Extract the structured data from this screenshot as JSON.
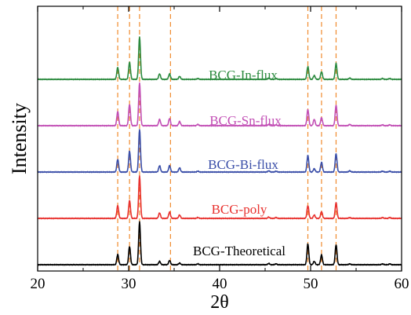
{
  "chart_data": {
    "type": "line",
    "title": "",
    "xlabel": "2θ",
    "ylabel": "Intensity",
    "xlim": [
      20,
      60
    ],
    "x_ticks": [
      20,
      30,
      40,
      50,
      60
    ],
    "y_ticks_shown": false,
    "grid": false,
    "legend": "none (series labeled inline above each trace)",
    "reference_lines": {
      "style": "dashed",
      "color": "#f08a2c",
      "x": [
        28.8,
        30.1,
        31.2,
        34.6,
        49.7,
        51.2,
        52.8
      ]
    },
    "series": [
      {
        "name": "BCG-Theoretical",
        "color": "#000000",
        "baseline": 0,
        "peaks": [
          [
            28.8,
            24
          ],
          [
            30.1,
            43
          ],
          [
            31.2,
            100
          ],
          [
            33.4,
            8
          ],
          [
            34.5,
            10
          ],
          [
            35.6,
            4
          ],
          [
            37.6,
            2
          ],
          [
            45.4,
            3
          ],
          [
            46.2,
            2
          ],
          [
            49.7,
            49
          ],
          [
            50.4,
            8
          ],
          [
            51.2,
            23
          ],
          [
            52.8,
            47
          ],
          [
            54.3,
            2
          ],
          [
            57.9,
            2
          ],
          [
            58.7,
            2
          ]
        ]
      },
      {
        "name": "BCG-poly",
        "color": "#e8312e",
        "baseline": 1.0,
        "peaks": [
          [
            28.8,
            30
          ],
          [
            30.1,
            42
          ],
          [
            31.2,
            100
          ],
          [
            33.4,
            13
          ],
          [
            34.5,
            15
          ],
          [
            35.6,
            8
          ],
          [
            37.6,
            2
          ],
          [
            45.4,
            3
          ],
          [
            46.2,
            2
          ],
          [
            49.7,
            30
          ],
          [
            50.4,
            8
          ],
          [
            51.2,
            16
          ],
          [
            52.8,
            37
          ],
          [
            54.3,
            2
          ],
          [
            57.9,
            2
          ],
          [
            58.7,
            2
          ]
        ]
      },
      {
        "name": "BCG-Bi-flux",
        "color": "#3a4ea8",
        "baseline": 2.0,
        "peaks": [
          [
            28.8,
            30
          ],
          [
            30.1,
            49
          ],
          [
            31.2,
            100
          ],
          [
            33.4,
            15
          ],
          [
            34.5,
            15
          ],
          [
            35.6,
            10
          ],
          [
            37.6,
            2
          ],
          [
            45.4,
            3
          ],
          [
            46.2,
            2
          ],
          [
            49.7,
            39
          ],
          [
            50.4,
            8
          ],
          [
            51.2,
            23
          ],
          [
            52.8,
            43
          ],
          [
            54.3,
            3
          ],
          [
            57.9,
            2
          ],
          [
            58.7,
            2
          ]
        ]
      },
      {
        "name": "BCG-Sn-flux",
        "color": "#c24fb5",
        "baseline": 3.0,
        "peaks": [
          [
            28.8,
            33
          ],
          [
            30.1,
            50
          ],
          [
            31.2,
            100
          ],
          [
            33.4,
            15
          ],
          [
            34.5,
            17
          ],
          [
            35.6,
            10
          ],
          [
            37.6,
            3
          ],
          [
            45.4,
            3
          ],
          [
            46.2,
            2
          ],
          [
            49.7,
            38
          ],
          [
            50.4,
            15
          ],
          [
            51.2,
            19
          ],
          [
            52.8,
            48
          ],
          [
            54.3,
            3
          ],
          [
            57.9,
            2
          ],
          [
            58.7,
            2
          ]
        ]
      },
      {
        "name": "BCG-In-flux",
        "color": "#2b8a3e",
        "baseline": 4.0,
        "peaks": [
          [
            28.8,
            28
          ],
          [
            30.1,
            40
          ],
          [
            31.2,
            100
          ],
          [
            33.4,
            13
          ],
          [
            34.5,
            13
          ],
          [
            35.6,
            7
          ],
          [
            37.6,
            2
          ],
          [
            45.4,
            3
          ],
          [
            46.2,
            2
          ],
          [
            49.7,
            30
          ],
          [
            50.4,
            9
          ],
          [
            51.2,
            18
          ],
          [
            52.8,
            37
          ],
          [
            54.3,
            3
          ],
          [
            57.9,
            2
          ],
          [
            58.7,
            2
          ]
        ]
      }
    ]
  }
}
